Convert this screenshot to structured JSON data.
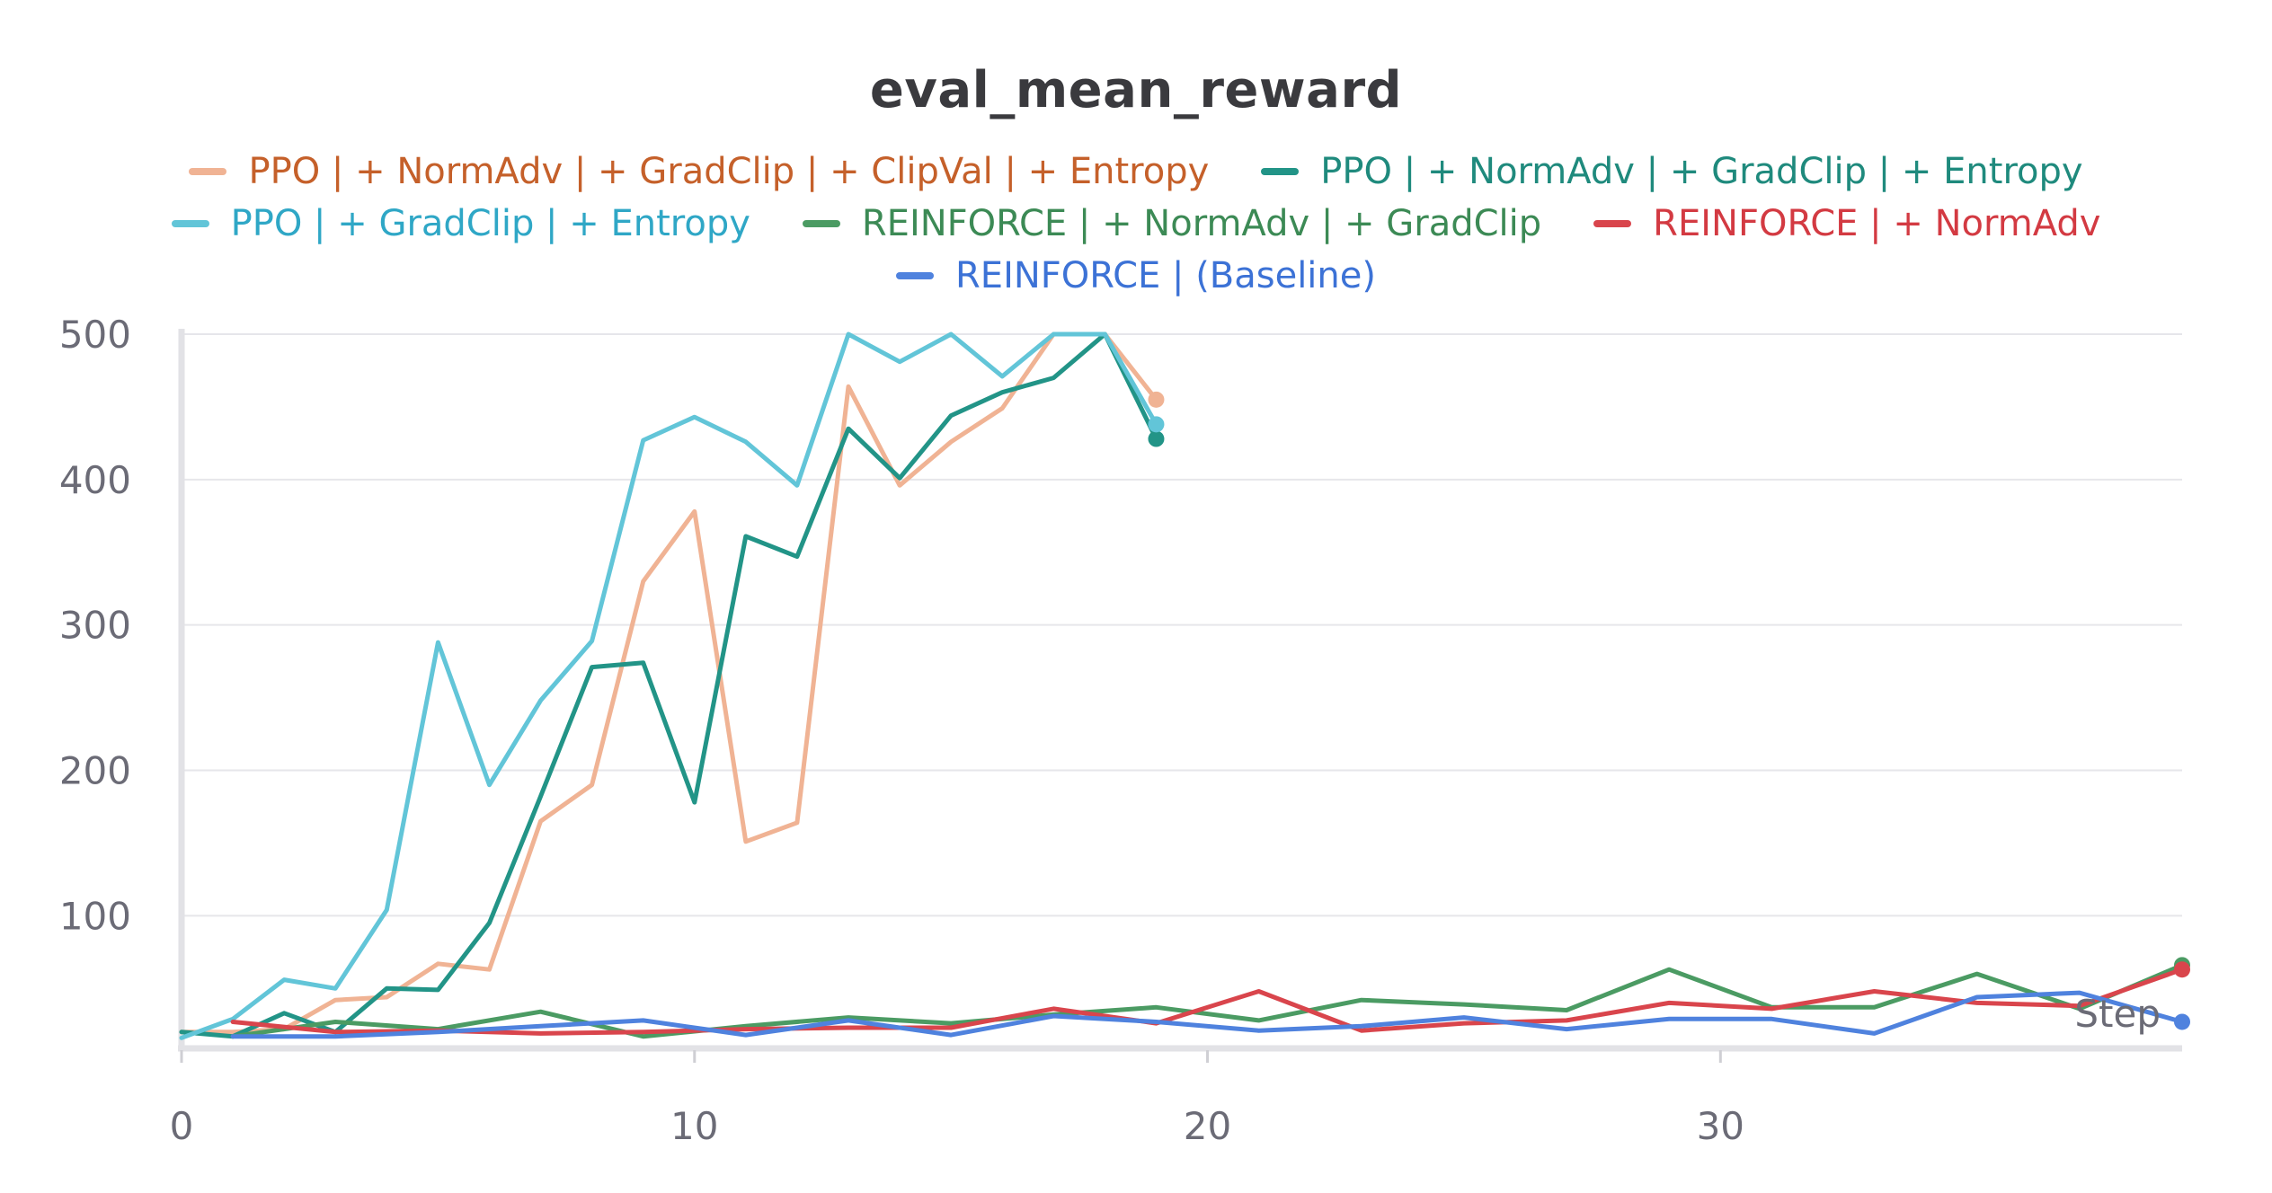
{
  "chart_data": {
    "type": "line",
    "title": "eval_mean_reward",
    "xlabel": "Step",
    "ylabel": "",
    "xlim": [
      0,
      39
    ],
    "ylim": [
      10,
      500
    ],
    "x_ticks": [
      0,
      10,
      20,
      30
    ],
    "y_ticks": [
      100,
      200,
      300,
      400,
      500
    ],
    "grid": true,
    "legend_position": "top-center",
    "series": [
      {
        "name": "PPO | + NormAdv | + GradClip | + ClipVal | + Entropy",
        "color": "#f0b394",
        "text_color": "#c5602a",
        "x": [
          0,
          1,
          2,
          3,
          4,
          5,
          6,
          7,
          8,
          9,
          10,
          11,
          12,
          13,
          14,
          15,
          16,
          17,
          18,
          19
        ],
        "y": [
          20,
          20,
          22,
          42,
          44,
          67,
          63,
          165,
          190,
          330,
          378,
          151,
          164,
          464,
          396,
          426,
          449,
          500,
          500,
          455
        ]
      },
      {
        "name": "PPO | + NormAdv | + GradClip | + Entropy",
        "color": "#229487",
        "text_color": "#1f8a7d",
        "x": [
          0,
          1,
          2,
          3,
          4,
          5,
          6,
          7,
          8,
          9,
          10,
          11,
          12,
          13,
          14,
          15,
          16,
          17,
          18,
          19
        ],
        "y": [
          20,
          17,
          33,
          20,
          50,
          49,
          95,
          182,
          271,
          274,
          178,
          361,
          347,
          435,
          401,
          444,
          460,
          470,
          500,
          428
        ]
      },
      {
        "name": "PPO | + GradClip | + Entropy",
        "color": "#62c5d8",
        "text_color": "#2fa7c6",
        "x": [
          0,
          1,
          2,
          3,
          4,
          5,
          6,
          7,
          8,
          9,
          10,
          11,
          12,
          13,
          14,
          15,
          16,
          17,
          18,
          19
        ],
        "y": [
          16,
          29,
          56,
          50,
          104,
          288,
          190,
          248,
          289,
          427,
          443,
          426,
          396,
          500,
          481,
          500,
          471,
          500,
          500,
          438
        ]
      },
      {
        "name": "REINFORCE | + NormAdv | + GradClip",
        "color": "#4b9b63",
        "text_color": "#3c8a55",
        "x": [
          1,
          3,
          5,
          7,
          9,
          11,
          13,
          15,
          17,
          19,
          21,
          23,
          25,
          27,
          29,
          31,
          33,
          35,
          37,
          39
        ],
        "y": [
          17,
          27,
          22,
          34,
          17,
          24,
          30,
          26,
          32,
          37,
          28,
          42,
          39,
          35,
          63,
          37,
          37,
          60,
          36,
          66
        ]
      },
      {
        "name": "REINFORCE | + NormAdv",
        "color": "#d9454c",
        "text_color": "#d33a42",
        "x": [
          1,
          3,
          5,
          7,
          9,
          11,
          13,
          15,
          17,
          19,
          21,
          23,
          25,
          27,
          29,
          31,
          33,
          35,
          37,
          39
        ],
        "y": [
          27,
          20,
          21,
          19,
          20,
          22,
          23,
          23,
          36,
          26,
          48,
          21,
          26,
          28,
          40,
          36,
          48,
          40,
          38,
          63
        ]
      },
      {
        "name": "REINFORCE | (Baseline)",
        "color": "#4f82de",
        "text_color": "#3c72d6",
        "x": [
          1,
          3,
          5,
          7,
          9,
          11,
          13,
          15,
          17,
          19,
          21,
          23,
          25,
          27,
          29,
          31,
          33,
          35,
          37,
          39
        ],
        "y": [
          17,
          17,
          20,
          24,
          28,
          18,
          28,
          18,
          31,
          27,
          21,
          24,
          30,
          22,
          29,
          29,
          19,
          44,
          47,
          27
        ]
      }
    ]
  }
}
